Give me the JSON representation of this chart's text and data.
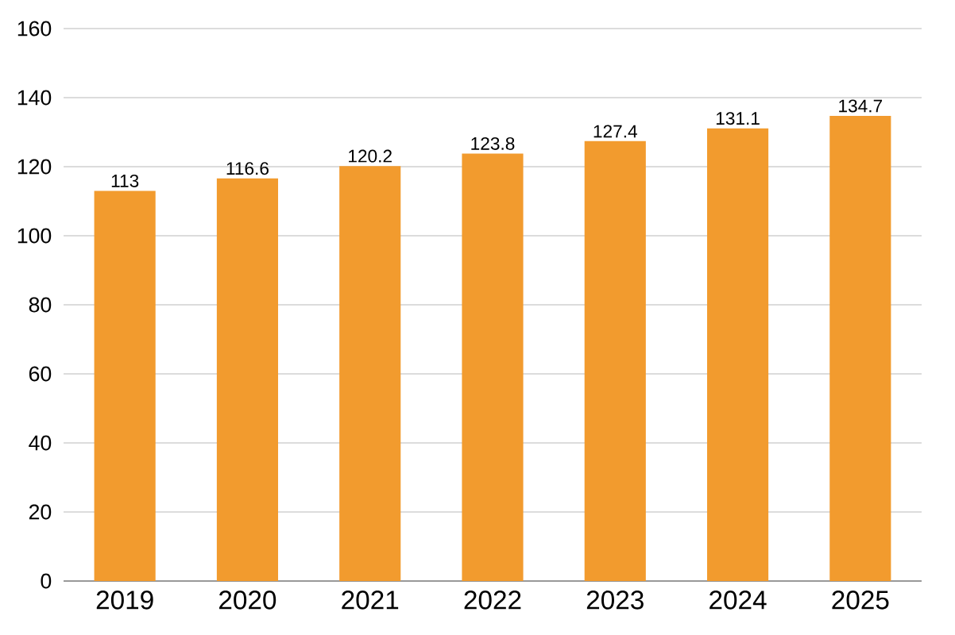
{
  "chart_data": {
    "type": "bar",
    "categories": [
      "2019",
      "2020",
      "2021",
      "2022",
      "2023",
      "2024",
      "2025"
    ],
    "values": [
      113,
      116.6,
      120.2,
      123.8,
      127.4,
      131.1,
      134.7
    ],
    "color": "#f29b2e",
    "ylim": [
      0,
      160
    ],
    "yticks": [
      0,
      20,
      40,
      60,
      80,
      100,
      120,
      140,
      160
    ],
    "grid": "y",
    "data_labels": true
  }
}
